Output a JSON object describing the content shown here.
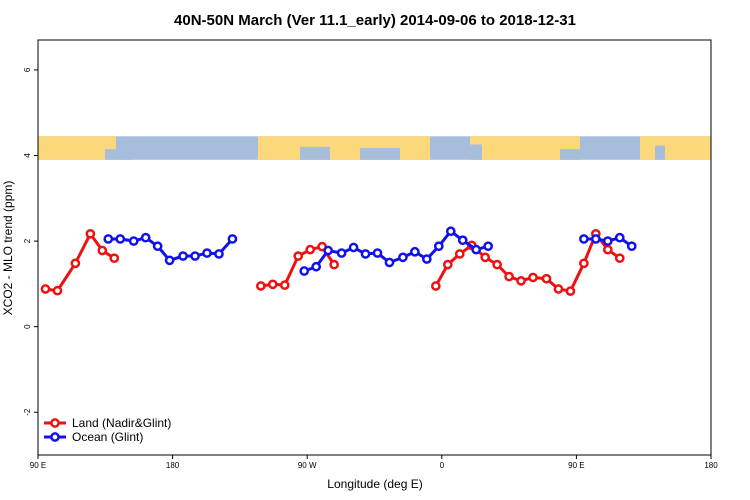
{
  "chart_data": {
    "type": "line",
    "title": "40N-50N March (Ver 11.1_early)   2014-09-06 to 2018-12-31",
    "xlabel": "Longitude (deg E)",
    "ylabel": "XCO2 - MLO trend (ppm)",
    "xlim": [
      90,
      450
    ],
    "ylim": [
      -3.0,
      6.7
    ],
    "x_ticks": [
      {
        "value": 90,
        "label": "90 E"
      },
      {
        "value": 180,
        "label": "180"
      },
      {
        "value": 270,
        "label": "90 W"
      },
      {
        "value": 360,
        "label": "0"
      },
      {
        "value": 450,
        "label": "90 E"
      },
      {
        "value": 540,
        "label": "180"
      }
    ],
    "y_ticks": [
      {
        "value": -2,
        "label": "-2"
      },
      {
        "value": 0,
        "label": "0"
      },
      {
        "value": 2,
        "label": "2"
      },
      {
        "value": 4,
        "label": "4"
      },
      {
        "value": 6,
        "label": "6"
      }
    ],
    "map_strip": {
      "ymin": 3.9,
      "ymax": 4.45,
      "land_color": "#fbd87a",
      "ocean_color": "#a6bddc"
    },
    "legend": {
      "position": "bottom-left"
    },
    "series": [
      {
        "name": "Land (Nadir&Glint)",
        "color": "#ee1111",
        "segments": [
          [
            [
              95,
              0.88
            ],
            [
              103,
              0.84
            ],
            [
              115,
              1.48
            ],
            [
              125,
              2.17
            ],
            [
              133,
              1.78
            ],
            [
              141,
              1.6
            ]
          ],
          [
            [
              239,
              0.95
            ],
            [
              247,
              0.99
            ],
            [
              255,
              0.97
            ],
            [
              264,
              1.65
            ],
            [
              272,
              1.8
            ],
            [
              280,
              1.87
            ],
            [
              288,
              1.45
            ]
          ],
          [
            [
              356,
              0.95
            ],
            [
              364,
              1.45
            ],
            [
              372,
              1.7
            ],
            [
              380,
              1.9
            ],
            [
              389,
              1.62
            ],
            [
              397,
              1.45
            ],
            [
              405,
              1.17
            ],
            [
              413,
              1.07
            ],
            [
              421,
              1.15
            ],
            [
              430,
              1.12
            ],
            [
              438,
              0.88
            ],
            [
              446,
              0.83
            ],
            [
              455,
              1.48
            ],
            [
              463,
              2.17
            ],
            [
              471,
              1.8
            ],
            [
              479,
              1.6
            ]
          ]
        ]
      },
      {
        "name": "Ocean (Glint)",
        "color": "#1111ee",
        "segments": [
          [
            [
              137,
              2.05
            ],
            [
              145,
              2.05
            ],
            [
              154,
              2.0
            ],
            [
              162,
              2.08
            ],
            [
              170,
              1.88
            ],
            [
              178,
              1.55
            ],
            [
              187,
              1.65
            ],
            [
              195,
              1.65
            ],
            [
              203,
              1.72
            ],
            [
              211,
              1.7
            ],
            [
              220,
              2.05
            ]
          ],
          [
            [
              268,
              1.3
            ],
            [
              276,
              1.4
            ],
            [
              284,
              1.78
            ],
            [
              293,
              1.72
            ],
            [
              301,
              1.85
            ],
            [
              309,
              1.7
            ],
            [
              317,
              1.72
            ],
            [
              325,
              1.5
            ],
            [
              334,
              1.62
            ],
            [
              342,
              1.75
            ],
            [
              350,
              1.58
            ],
            [
              358,
              1.88
            ],
            [
              366,
              2.23
            ],
            [
              374,
              2.02
            ],
            [
              383,
              1.8
            ],
            [
              391,
              1.88
            ]
          ],
          [
            [
              455,
              2.05
            ],
            [
              463,
              2.05
            ],
            [
              471,
              2.0
            ],
            [
              479,
              2.08
            ],
            [
              487,
              1.88
            ]
          ]
        ]
      }
    ]
  }
}
